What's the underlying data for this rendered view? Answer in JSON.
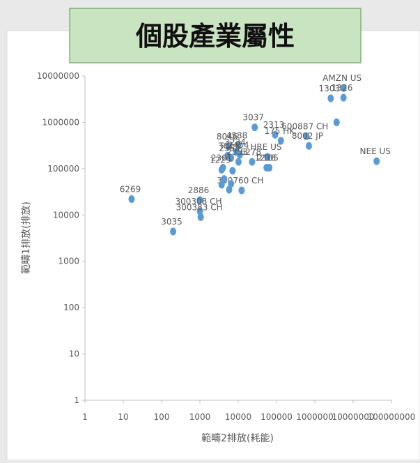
{
  "title": "個股產業屬性",
  "chart_data": {
    "type": "scatter",
    "xlabel": "範疇2排放(耗能)",
    "ylabel": "範疇1排放(排放)",
    "log": true,
    "color": "#5b9bd5",
    "xlim": [
      1,
      100000000
    ],
    "ylim": [
      1,
      10000000
    ],
    "xticks": [
      1,
      10,
      100,
      1000,
      10000,
      100000,
      1000000,
      10000000,
      100000000
    ],
    "yticks": [
      1,
      10,
      100,
      1000,
      10000,
      100000,
      1000000,
      10000000
    ],
    "labels": [
      "6269",
      "3035",
      "2886",
      "300308 CH",
      "300383 CH",
      "3037",
      "AMZN US",
      "1303",
      "1326",
      "600887 CH",
      "8002 JP",
      null,
      "NEE US",
      "2313",
      "175 HK",
      "8046",
      "4588",
      "3234",
      "2454",
      "6278",
      "HRE US",
      "1216",
      "2105",
      "TCL",
      "2352",
      "2353",
      "2301",
      "1229",
      "300760 CH",
      null,
      null,
      null,
      null,
      null
    ],
    "x": [
      16.5,
      200,
      1000,
      1000,
      1050,
      27000,
      5600000,
      2600000,
      5600000,
      600000,
      700000,
      3700000,
      41000000,
      92000,
      130000,
      5600,
      10000,
      9000,
      11000,
      23000,
      58000,
      55000,
      65000,
      5300,
      6500,
      10200,
      4000,
      3700,
      12300,
      5800,
      6500,
      3700,
      4300,
      7100
    ],
    "values": [
      22000,
      4400,
      21000,
      12000,
      9000,
      780000,
      5500000,
      3300000,
      3400000,
      500000,
      310000,
      1000000,
      145000,
      540000,
      400000,
      300000,
      320000,
      230000,
      200000,
      140000,
      180000,
      105000,
      105000,
      190000,
      170000,
      140000,
      105000,
      95000,
      34000,
      35000,
      47000,
      45000,
      60000,
      90000
    ]
  }
}
